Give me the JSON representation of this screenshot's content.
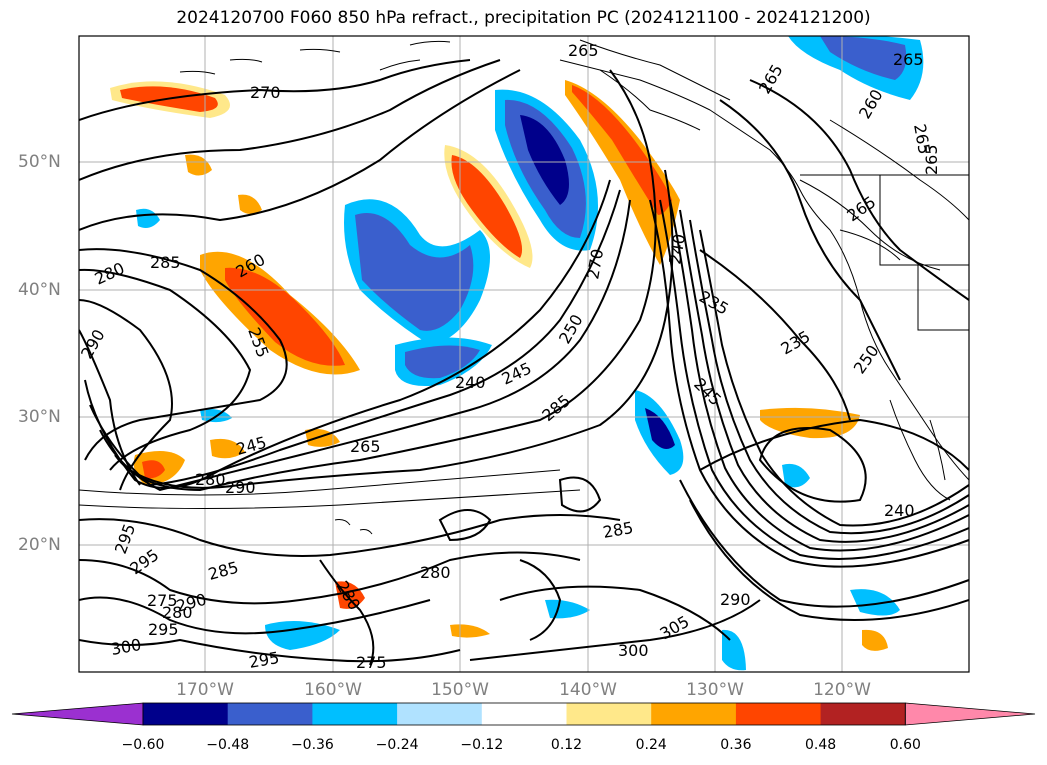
{
  "title": "2024120700 F060 850 hPa refract., precipitation PC (2024121100 - 2024121200)",
  "lat_labels": [
    "50°N",
    "40°N",
    "30°N",
    "20°N"
  ],
  "lon_labels": [
    "170°W",
    "160°W",
    "150°W",
    "140°W",
    "130°W",
    "120°W"
  ],
  "contour_labels": [
    "270",
    "265",
    "265",
    "260",
    "265",
    "265",
    "265",
    "265",
    "280",
    "285",
    "260",
    "255",
    "290",
    "270",
    "240",
    "235",
    "250",
    "235",
    "240",
    "245",
    "245",
    "250",
    "285",
    "265",
    "245",
    "280",
    "290",
    "295",
    "295",
    "285",
    "280",
    "275",
    "280",
    "290",
    "295",
    "300",
    "295",
    "275",
    "280",
    "300",
    "305",
    "290",
    "285",
    "240"
  ],
  "colorbar": {
    "ticks": [
      "−0.60",
      "−0.48",
      "−0.36",
      "−0.24",
      "−0.12",
      "0.12",
      "0.24",
      "0.36",
      "0.48",
      "0.60"
    ],
    "colors": [
      "#9b30d0",
      "#00008b",
      "#3a5fcd",
      "#00bfff",
      "#b0e2ff",
      "#ffffff",
      "#ffe88a",
      "#ffa500",
      "#ff4500",
      "#b22222",
      "#ff88aa"
    ]
  }
}
